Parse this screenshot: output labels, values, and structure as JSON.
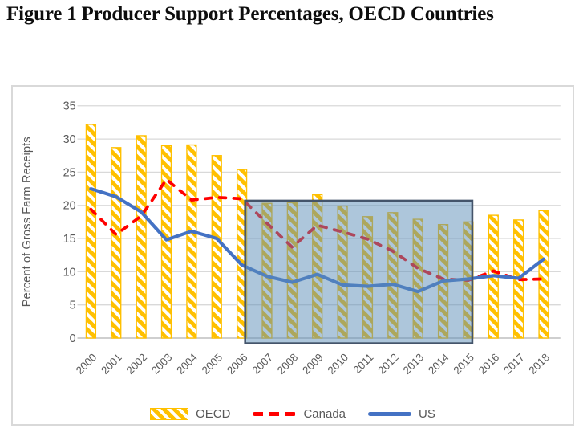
{
  "figure": {
    "title": "Figure 1 Producer Support Percentages, OECD Countries"
  },
  "chart_data": {
    "type": "bar",
    "subtype": "bar-line-combo",
    "categories": [
      "2000",
      "2001",
      "2002",
      "2003",
      "2004",
      "2005",
      "2006",
      "2007",
      "2008",
      "2009",
      "2010",
      "2011",
      "2012",
      "2013",
      "2014",
      "2015",
      "2016",
      "2017",
      "2018"
    ],
    "series": [
      {
        "name": "OECD",
        "type": "bar",
        "style": "diagonal-hatch",
        "color": "#FFC000",
        "values": [
          32.2,
          28.7,
          30.5,
          29.0,
          29.1,
          27.5,
          25.4,
          20.3,
          20.4,
          21.6,
          19.9,
          18.3,
          18.9,
          17.9,
          17.1,
          17.5,
          18.5,
          17.8,
          19.2
        ]
      },
      {
        "name": "Canada",
        "type": "line",
        "style": "dashed",
        "color": "#FF0000",
        "values": [
          19.4,
          15.6,
          18.4,
          23.9,
          20.8,
          21.2,
          21.0,
          17.3,
          13.7,
          17.0,
          16.0,
          14.9,
          13.1,
          10.5,
          8.9,
          8.7,
          10.1,
          8.8,
          8.9
        ]
      },
      {
        "name": "US",
        "type": "line",
        "style": "solid",
        "color": "#4472C4",
        "values": [
          22.5,
          21.3,
          19.0,
          14.8,
          16.1,
          15.0,
          11.0,
          9.3,
          8.4,
          9.6,
          8.0,
          7.8,
          8.1,
          7.0,
          8.6,
          8.9,
          9.4,
          9.0,
          11.9
        ]
      }
    ],
    "title": "",
    "xlabel": "",
    "ylabel": "Percent of Gross Farm Receipts",
    "ylim": [
      0,
      35
    ],
    "yticks": [
      0,
      5,
      10,
      15,
      20,
      25,
      30,
      35
    ],
    "grid": true,
    "legend_position": "bottom",
    "highlight_region": {
      "x_start_index": 6.13,
      "x_end_index": 15.16,
      "y_bottom": -0.8,
      "y_top": 20.7,
      "fill": "#5B8DB8",
      "fill_opacity": 0.5,
      "border_color": "#44546A"
    }
  },
  "legend": {
    "items": [
      {
        "label": "OECD"
      },
      {
        "label": "Canada"
      },
      {
        "label": "US"
      }
    ]
  },
  "colors": {
    "oecd_bar": "#FFC000",
    "canada_line": "#FF0000",
    "us_line": "#4472C4",
    "gridline": "#D9D9D9",
    "axis_line": "#BFBFBF",
    "tick_text": "#595959",
    "figure_border": "#D9D9D9",
    "highlight_fill": "#5B8DB8",
    "highlight_border": "#44546A"
  }
}
